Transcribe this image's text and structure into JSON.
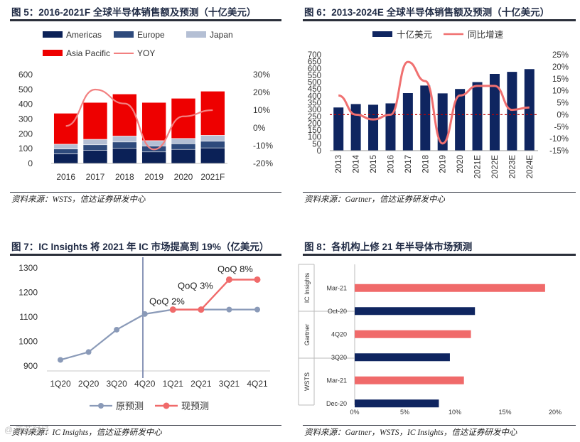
{
  "colors": {
    "americas": "#0b2157",
    "europe": "#2e4a7c",
    "japan": "#b4bfd4",
    "asia_pacific": "#ee0000",
    "yoy_line": "#f28080",
    "navy_bar": "#0f2560",
    "pink_line": "#f07070",
    "dashed": "#c00000",
    "gray_line": "#8a9ab8",
    "pink_marker": "#f06a6a"
  },
  "panels": {
    "fig5": {
      "title": "图 5：2016-2021F 全球半导体销售额及预测（十亿美元）",
      "source": "资料来源：WSTS，信达证券研发中心"
    },
    "fig6": {
      "title": "图 6：2013-2024E 全球半导体销售额及预测（十亿美元）",
      "source": "资料来源：Gartner，信达证券研发中心"
    },
    "fig7": {
      "title": "图 7：IC Insights 将 2021 年 IC 市场提高到 19%（亿美元）",
      "source": "资料来源：IC Insights，信达证券研发中心",
      "watermark": "@ 莲花财经"
    },
    "fig8": {
      "title": "图 8：各机构上修 21 年半导体市场预测",
      "source": "资料来源：Gartner，WSTS，IC Insights，信达证券研发中心"
    }
  },
  "chart_data": [
    {
      "id": "fig5",
      "type": "bar",
      "stacked": true,
      "categories": [
        "2016",
        "2017",
        "2018",
        "2019",
        "2020",
        "2021F"
      ],
      "series": [
        {
          "name": "Americas",
          "values": [
            65,
            88,
            102,
            78,
            95,
            105
          ]
        },
        {
          "name": "Europe",
          "values": [
            33,
            38,
            43,
            40,
            38,
            45
          ]
        },
        {
          "name": "Japan",
          "values": [
            32,
            37,
            40,
            36,
            36,
            40
          ]
        },
        {
          "name": "Asia Pacific",
          "values": [
            209,
            249,
            284,
            258,
            271,
            298
          ]
        }
      ],
      "line_series": {
        "name": "YOY",
        "values": [
          1.1,
          21.6,
          13.7,
          -12.1,
          6.5,
          10.0
        ],
        "unit": "%"
      },
      "ylim": [
        0,
        600
      ],
      "yticks": [
        "0",
        "100",
        "200",
        "300",
        "400",
        "500",
        "600"
      ],
      "y2lim": [
        -20,
        30
      ],
      "y2ticks": [
        "-20%",
        "-10%",
        "0%",
        "10%",
        "20%",
        "30%"
      ],
      "legend": [
        "Americas",
        "Europe",
        "Japan",
        "Asia Pacific",
        "YOY"
      ]
    },
    {
      "id": "fig6",
      "type": "bar",
      "categories": [
        "2013",
        "2014",
        "2015",
        "2016",
        "2017",
        "2018",
        "2019",
        "2020",
        "2021E",
        "2022E",
        "2023E",
        "2024E"
      ],
      "series": [
        {
          "name": "十亿美元",
          "values": [
            315,
            340,
            335,
            345,
            420,
            475,
            418,
            450,
            500,
            560,
            575,
            595
          ]
        }
      ],
      "line_series": {
        "name": "同比增速",
        "values": [
          8,
          0,
          -2,
          0,
          22,
          14,
          -12,
          8,
          12,
          12,
          2,
          3
        ],
        "unit": "%"
      },
      "ylim": [
        0,
        700
      ],
      "yticks": [
        "0",
        "50",
        "100",
        "150",
        "200",
        "250",
        "300",
        "350",
        "400",
        "450",
        "500",
        "550",
        "600",
        "650",
        "700"
      ],
      "y2lim": [
        -15,
        25
      ],
      "y2ticks": [
        "-15%",
        "-10%",
        "-5%",
        "0%",
        "5%",
        "10%",
        "15%",
        "20%",
        "25%"
      ],
      "legend": [
        "十亿美元",
        "同比增速"
      ]
    },
    {
      "id": "fig7",
      "type": "line",
      "categories": [
        "1Q20",
        "2Q20",
        "3Q20",
        "4Q20",
        "1Q21",
        "2Q21",
        "3Q21",
        "4Q21"
      ],
      "series": [
        {
          "name": "原预测",
          "values": [
            925,
            957,
            1048,
            1112,
            1130,
            1130,
            1130,
            1130
          ]
        },
        {
          "name": "现预测",
          "values": [
            null,
            null,
            null,
            null,
            1130,
            1130,
            1252,
            1252
          ]
        }
      ],
      "annotations": [
        "QoQ 2%",
        "QoQ 3%",
        "QoQ 8%"
      ],
      "ylim": [
        880,
        1320
      ],
      "yticks": [
        "900",
        "1000",
        "1100",
        "1200",
        "1300"
      ],
      "legend": [
        "原预测",
        "现预测"
      ]
    },
    {
      "id": "fig8",
      "type": "bar",
      "orientation": "horizontal",
      "categories": [
        "Mar-21",
        "Oct-20",
        "4Q20",
        "3Q20",
        "Mar-21",
        "Dec-20"
      ],
      "groups": [
        "IC Insights",
        "Gartner",
        "WSTS"
      ],
      "values": [
        19,
        12,
        11.6,
        9.5,
        10.9,
        8.4
      ],
      "unit": "%",
      "xlim": [
        0,
        20
      ],
      "xticks": [
        "0%",
        "5%",
        "10%",
        "15%",
        "20%"
      ]
    }
  ]
}
